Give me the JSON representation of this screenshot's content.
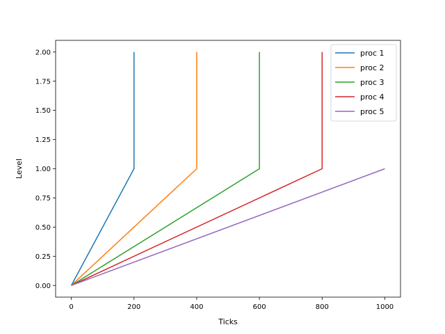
{
  "chart_data": {
    "type": "line",
    "xlabel": "Ticks",
    "ylabel": "Level",
    "xlim": [
      -50,
      1050
    ],
    "ylim": [
      -0.1,
      2.1
    ],
    "xticks": [
      0,
      200,
      400,
      600,
      800,
      1000
    ],
    "xtick_labels": [
      "0",
      "200",
      "400",
      "600",
      "800",
      "1000"
    ],
    "yticks": [
      0,
      0.25,
      0.5,
      0.75,
      1.0,
      1.25,
      1.5,
      1.75,
      2.0
    ],
    "ytick_labels": [
      "0.00",
      "0.25",
      "0.50",
      "0.75",
      "1.00",
      "1.25",
      "1.50",
      "1.75",
      "2.00"
    ],
    "grid": false,
    "legend_position": "top-right",
    "series": [
      {
        "name": "proc 1",
        "color": "#1f77b4",
        "x": [
          0,
          200,
          200
        ],
        "y": [
          0,
          1,
          2
        ]
      },
      {
        "name": "proc 2",
        "color": "#ff7f0e",
        "x": [
          0,
          400,
          400
        ],
        "y": [
          0,
          1,
          2
        ]
      },
      {
        "name": "proc 3",
        "color": "#2ca02c",
        "x": [
          0,
          600,
          600
        ],
        "y": [
          0,
          1,
          2
        ]
      },
      {
        "name": "proc 4",
        "color": "#d62728",
        "x": [
          0,
          800,
          800
        ],
        "y": [
          0,
          1,
          2
        ]
      },
      {
        "name": "proc 5",
        "color": "#9467bd",
        "x": [
          0,
          1000
        ],
        "y": [
          0,
          1
        ]
      }
    ]
  }
}
